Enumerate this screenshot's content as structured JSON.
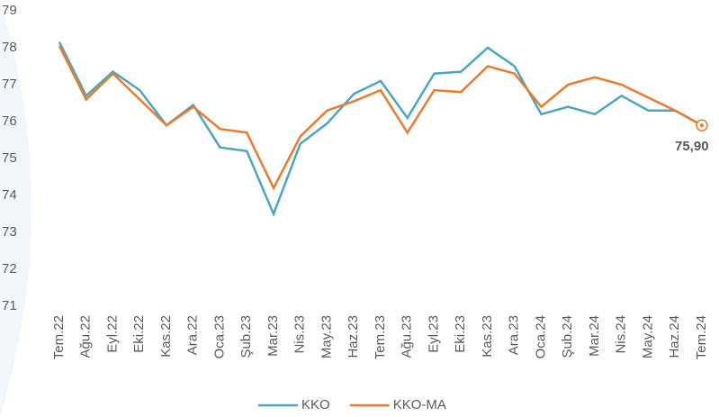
{
  "chart_data": {
    "type": "line",
    "categories": [
      "Tem.22",
      "Ağu.22",
      "Eyl.22",
      "Eki.22",
      "Kas.22",
      "Ara.22",
      "Oca.23",
      "Şub.23",
      "Mar.23",
      "Nis.23",
      "May.23",
      "Haz.23",
      "Tem.23",
      "Ağu.23",
      "Eyl.23",
      "Eki.23",
      "Kas.23",
      "Ara.23",
      "Oca.24",
      "Şub.24",
      "Mar.24",
      "Nis.24",
      "May.24",
      "Haz.24",
      "Tem.24"
    ],
    "series": [
      {
        "name": "KKO",
        "color": "#4ba6c0",
        "values": [
          78.15,
          76.7,
          77.35,
          76.85,
          75.9,
          76.45,
          75.3,
          75.2,
          73.5,
          75.4,
          75.95,
          76.75,
          77.1,
          76.1,
          77.3,
          77.35,
          78.0,
          77.5,
          76.2,
          76.4,
          76.2,
          76.7,
          76.3,
          76.3,
          75.9
        ],
        "value_labels": [
          null,
          null,
          null,
          null,
          null,
          null,
          null,
          null,
          null,
          null,
          null,
          null,
          null,
          null,
          null,
          null,
          null,
          null,
          null,
          null,
          null,
          null,
          null,
          null,
          "75,90"
        ]
      },
      {
        "name": "KKO-MA",
        "color": "#ec7a2c",
        "values": [
          78.05,
          76.6,
          77.3,
          76.6,
          75.9,
          76.4,
          75.8,
          75.7,
          74.2,
          75.6,
          76.3,
          76.55,
          76.85,
          75.7,
          76.85,
          76.8,
          77.5,
          77.3,
          76.4,
          77.0,
          77.2,
          77.0,
          76.65,
          76.3,
          75.9
        ]
      }
    ],
    "ylim": [
      71,
      79
    ],
    "yticks": [
      71,
      72,
      73,
      74,
      75,
      76,
      77,
      78,
      79
    ],
    "grid": false,
    "legend": "bottom"
  }
}
